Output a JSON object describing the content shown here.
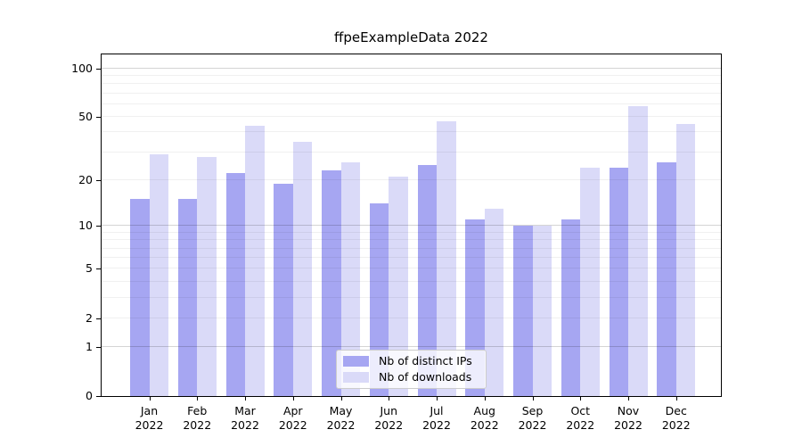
{
  "chart_data": {
    "type": "bar",
    "title": "ffpeExampleData 2022",
    "categories": [
      "Jan",
      "Feb",
      "Mar",
      "Apr",
      "May",
      "Jun",
      "Jul",
      "Aug",
      "Sep",
      "Oct",
      "Nov",
      "Dec"
    ],
    "category_year": "2022",
    "series": [
      {
        "name": "Nb of distinct IPs",
        "color": "#a6a6f2",
        "values": [
          15,
          15,
          22,
          19,
          23,
          14,
          25,
          11,
          10,
          11,
          24,
          26
        ]
      },
      {
        "name": "Nb of downloads",
        "color": "#dadaf8",
        "values": [
          29,
          28,
          44,
          35,
          26,
          21,
          47,
          13,
          10,
          24,
          58,
          45
        ]
      }
    ],
    "xlabel": "",
    "ylabel": "",
    "yscale": "log1p",
    "ylim": [
      0,
      122
    ],
    "yticks": [
      0,
      1,
      2,
      5,
      10,
      20,
      50,
      100
    ],
    "grid": {
      "major_at": [
        1,
        10,
        100
      ],
      "minor_at": [
        2,
        3,
        4,
        5,
        6,
        7,
        8,
        9,
        20,
        30,
        40,
        50,
        60,
        70,
        80,
        90
      ],
      "major_color": "#c9c9c9",
      "minor_color": "#ebebeb"
    },
    "legend": {
      "position": "lower center"
    }
  }
}
